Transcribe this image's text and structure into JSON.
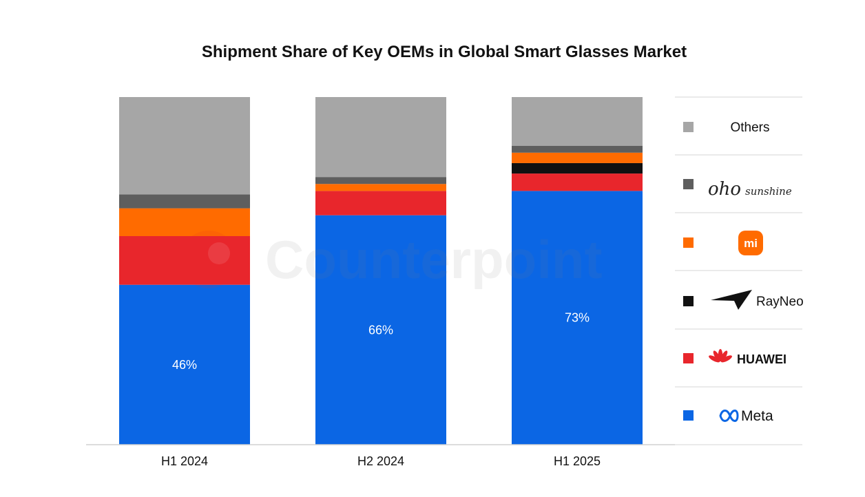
{
  "chart_data": {
    "type": "bar",
    "stacked": true,
    "normalized": true,
    "title": "Shipment Share of Key OEMs in Global Smart Glasses Market",
    "xlabel": "",
    "ylabel": "",
    "ylim": [
      0,
      100
    ],
    "grid": false,
    "legend_position": "right",
    "categories": [
      "H1 2024",
      "H2 2024",
      "H1 2025"
    ],
    "series": [
      {
        "name": "Meta",
        "color": "#0b66e4",
        "values": [
          46,
          66,
          73
        ],
        "labels": [
          "46%",
          "66%",
          "73%"
        ]
      },
      {
        "name": "HUAWEI",
        "color": "#e8262c",
        "values": [
          14,
          7,
          5
        ],
        "labels": []
      },
      {
        "name": "RayNeo",
        "color": "#111111",
        "values": [
          0,
          0,
          3
        ],
        "labels": []
      },
      {
        "name": "Xiaomi",
        "color": "#ff6b00",
        "values": [
          8,
          2,
          3
        ],
        "labels": []
      },
      {
        "name": "oho sunshine",
        "color": "#5e5e5e",
        "values": [
          4,
          2,
          2
        ],
        "labels": []
      },
      {
        "name": "Others",
        "color": "#a6a6a6",
        "values": [
          28,
          23,
          14
        ],
        "labels": []
      }
    ]
  },
  "legend": {
    "others_label": "Others",
    "oho_main": "oho",
    "oho_sub": "sunshine",
    "xiaomi_mark": "mi",
    "rayneo_label": "RayNeo",
    "huawei_label": "HUAWEI",
    "meta_label": "Meta"
  },
  "watermark": {
    "text": "Counterpoint"
  }
}
